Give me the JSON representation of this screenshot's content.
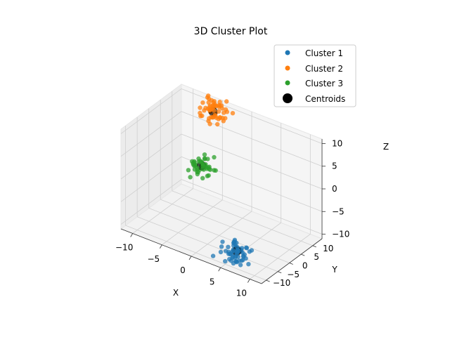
{
  "chart_data": {
    "type": "scatter",
    "title": "3D Cluster Plot",
    "xlabel": "X",
    "ylabel": "Y",
    "zlabel": "Z",
    "xlim": [
      -12,
      12
    ],
    "ylim": [
      -12,
      14
    ],
    "zlim": [
      -11,
      11
    ],
    "xticks": [
      "−10",
      "−5",
      "0",
      "5",
      "10"
    ],
    "yticks": [
      "−10",
      "−5",
      "0",
      "5",
      "10"
    ],
    "zticks": [
      "−10",
      "−5",
      "0",
      "5",
      "10"
    ],
    "xtick_values": [
      -10,
      -5,
      0,
      5,
      10
    ],
    "ytick_values": [
      -10,
      -5,
      0,
      5,
      10
    ],
    "ztick_values": [
      -10,
      -5,
      0,
      5,
      10
    ],
    "grid": true,
    "legend_position": "top-right",
    "series": [
      {
        "name": "Cluster 1",
        "color": "#1f77b4",
        "center": [
          5,
          -5,
          -10
        ],
        "spread": 1.2,
        "count": 60
      },
      {
        "name": "Cluster 2",
        "color": "#ff7f0e",
        "center": [
          -5,
          10,
          10
        ],
        "spread": 1.2,
        "count": 60
      },
      {
        "name": "Cluster 3",
        "color": "#2ca02c",
        "center": [
          -5,
          5,
          0
        ],
        "spread": 1.0,
        "count": 50
      }
    ],
    "centroids": {
      "name": "Centroids",
      "color": "#000000",
      "points": [
        [
          5,
          -5,
          -10
        ],
        [
          -5,
          10,
          10
        ],
        [
          -5,
          5,
          0
        ]
      ]
    }
  }
}
